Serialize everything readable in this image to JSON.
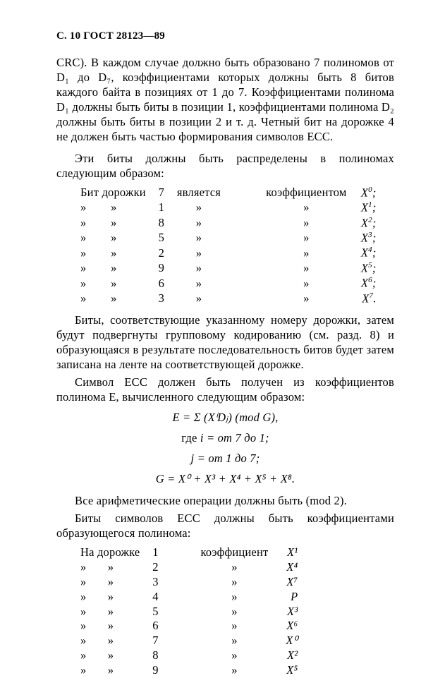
{
  "header": "С. 10  ГОСТ 28123—89",
  "para1": "CRC). В каждом случае должно быть образовано 7 полиномов от D₁ до D₇, коэффициентами которых должны быть 8 битов каждого байта в позициях от 1 до 7. Коэффициентами полинома D₁ должны быть биты в позиции 1, коэффициентами полинома D₂ должны быть биты в позиции 2 и т. д. Четный бит на дорожке 4 не должен быть частью формирования символов ECC.",
  "para2": "Эти биты должны быть распределены в полиномах следующим образом:",
  "table1": {
    "lead": "Бит дорожки",
    "isWord": "является",
    "coefWord": "коэффициентом",
    "arrow": "»",
    "rows": [
      {
        "track": "7",
        "exp": "0"
      },
      {
        "track": "1",
        "exp": "1"
      },
      {
        "track": "8",
        "exp": "2"
      },
      {
        "track": "5",
        "exp": "3"
      },
      {
        "track": "2",
        "exp": "4"
      },
      {
        "track": "9",
        "exp": "5"
      },
      {
        "track": "6",
        "exp": "6"
      },
      {
        "track": "3",
        "exp": "7"
      }
    ]
  },
  "para3": "Биты, соответствующие указанному номеру дорожки, затем будут подвергнуты групповому кодированию (см. разд. 8) и образующаяся в результате последовательность битов будет затем записана на ленте на соответствующей дорожке.",
  "para4": "Символ ECC должен быть получен из коэффициентов полинома E, вычисленного следующим образом:",
  "eq1": "E = Σ (XⁱDⱼ) (mod G),",
  "eq2a": "где ",
  "eq2b": "i = от 7 до 1;",
  "eq3": "j = от 1 до 7;",
  "eq4": "G = X⁰ + X³ + X⁴ + X⁵ + X⁸.",
  "para5": "Все арифметические операции должны быть (mod 2).",
  "para6": "Биты символов ECC должны быть коэффициентами образующегося полинома:",
  "table2": {
    "lead": "На дорожке",
    "coefWord": "коэффициент",
    "arrow": "»",
    "rows": [
      {
        "track": "1",
        "val": "X¹"
      },
      {
        "track": "2",
        "val": "X⁴"
      },
      {
        "track": "3",
        "val": "X⁷"
      },
      {
        "track": "4",
        "val": "P"
      },
      {
        "track": "5",
        "val": "X³"
      },
      {
        "track": "6",
        "val": "X⁶"
      },
      {
        "track": "7",
        "val": "X⁰"
      },
      {
        "track": "8",
        "val": "X²"
      },
      {
        "track": "9",
        "val": "X⁵"
      }
    ]
  }
}
